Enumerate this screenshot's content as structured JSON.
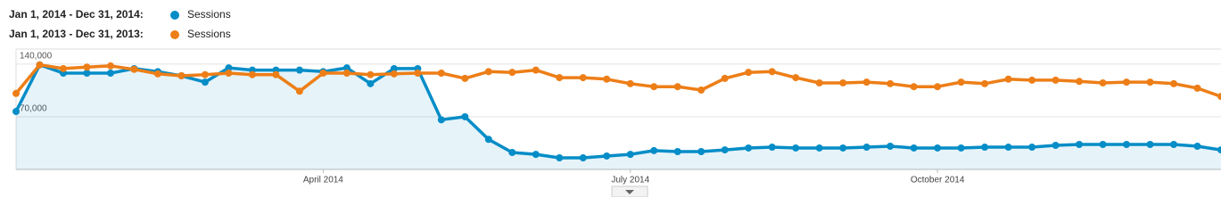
{
  "chart_data": {
    "type": "line",
    "series": [
      {
        "period": "Jan 1, 2014 - Dec 31, 2014:",
        "name": "Sessions",
        "color": "#058dc7",
        "area": true,
        "values": [
          77000,
          139000,
          128000,
          128000,
          128000,
          134000,
          130000,
          124500,
          116000,
          135000,
          132000,
          132000,
          132000,
          130000,
          135000,
          114000,
          134000,
          134000,
          66000,
          70000,
          40000,
          22500,
          20000,
          15400,
          15400,
          17800,
          20000,
          25000,
          23700,
          23700,
          26000,
          28500,
          29600,
          28500,
          28500,
          28500,
          29600,
          30800,
          28500,
          28500,
          28500,
          29600,
          29600,
          29600,
          32000,
          33200,
          33200,
          33200,
          33200,
          33200,
          30800,
          26000
        ]
      },
      {
        "period": "Jan 1, 2013 - Dec 31, 2013:",
        "name": "Sessions",
        "color": "#ed7e17",
        "area": false,
        "values": [
          101000,
          139000,
          134000,
          136000,
          137600,
          133000,
          127000,
          124500,
          126000,
          128000,
          126000,
          126000,
          104000,
          128000,
          128000,
          126000,
          127000,
          128000,
          128000,
          121000,
          130000,
          129000,
          132000,
          122000,
          122000,
          120000,
          114000,
          110000,
          110000,
          105500,
          121000,
          129000,
          130000,
          122000,
          115000,
          115000,
          116000,
          114000,
          110000,
          110000,
          116000,
          114000,
          120000,
          118600,
          118600,
          117000,
          115000,
          116000,
          116000,
          114000,
          108000,
          97000
        ]
      }
    ],
    "categories": [
      null,
      null,
      null,
      null,
      null,
      null,
      null,
      null,
      null,
      null,
      null,
      null,
      null,
      "April 2014",
      null,
      null,
      null,
      null,
      null,
      null,
      null,
      null,
      null,
      null,
      null,
      null,
      "July 2014",
      null,
      null,
      null,
      null,
      null,
      null,
      null,
      null,
      null,
      null,
      null,
      null,
      "October 2014",
      null,
      null,
      null,
      null,
      null,
      null,
      null,
      null,
      null,
      null,
      null,
      null
    ],
    "ylim": [
      0,
      160000
    ],
    "yticks": [
      {
        "value": 70000,
        "label": "70,000"
      },
      {
        "value": 140000,
        "label": "140,000"
      }
    ],
    "grid": true
  }
}
